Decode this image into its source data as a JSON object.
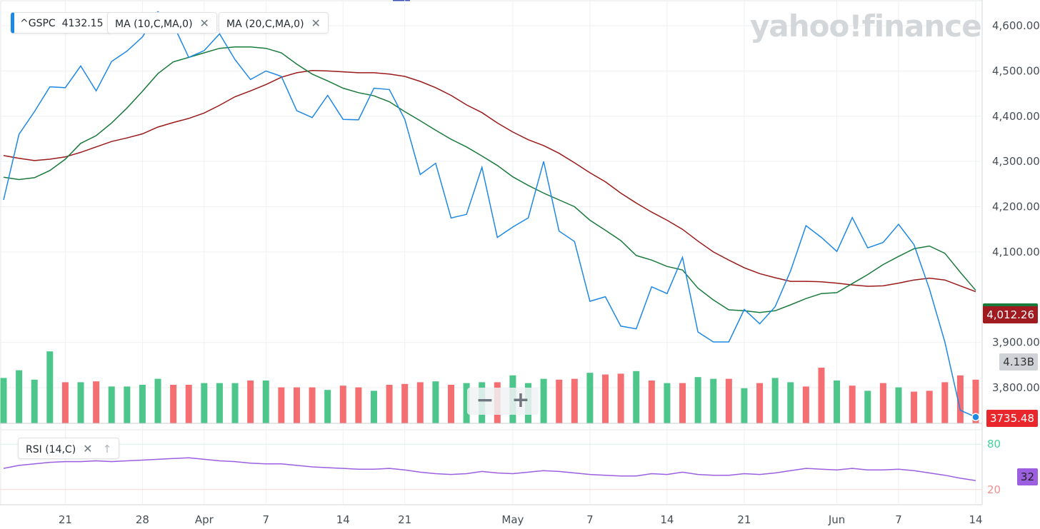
{
  "watermark": "yahoo!finance",
  "legend": {
    "ticker": "^GSPC",
    "ticker_value": "4132.15",
    "ma10_label": "MA (10,C,MA,0)",
    "ma20_label": "MA (20,C,MA,0)",
    "rsi_label": "RSI (14,C)",
    "close_symbol": "✕",
    "up_symbol": "↑"
  },
  "badges": {
    "ma20_value": "4,012.26",
    "volume_value": "4.13B",
    "price_value": "3735.48",
    "rsi_value": "32"
  },
  "zoom": {
    "minus": "−",
    "plus": "+"
  },
  "colors": {
    "price": "#1e88e5",
    "ma10": "#1a7a3c",
    "ma20": "#9a1a1a",
    "vol_up": "#4cc68a",
    "vol_down": "#f46e72",
    "rsi": "#9b5fe0",
    "rsi_upper": "#3fd49a",
    "rsi_lower": "#f29090"
  },
  "chart_data": {
    "type": "line",
    "y_ticks": [
      "4,600.00",
      "4,500.00",
      "4,400.00",
      "4,300.00",
      "4,200.00",
      "4,100.00",
      "3,900.00",
      "3,800.00"
    ],
    "y_tick_values": [
      4600,
      4500,
      4400,
      4300,
      4200,
      4100,
      3900,
      3800
    ],
    "ylim": [
      3730,
      4620
    ],
    "x_ticks": [
      {
        "label": "21",
        "index": 4
      },
      {
        "label": "28",
        "index": 9
      },
      {
        "label": "Apr",
        "index": 13
      },
      {
        "label": "7",
        "index": 17
      },
      {
        "label": "14",
        "index": 22
      },
      {
        "label": "21",
        "index": 26
      },
      {
        "label": "May",
        "index": 33
      },
      {
        "label": "7",
        "index": 38
      },
      {
        "label": "14",
        "index": 43
      },
      {
        "label": "21",
        "index": 48
      },
      {
        "label": "Jun",
        "index": 54
      },
      {
        "label": "7",
        "index": 58
      },
      {
        "label": "14",
        "index": 63
      }
    ],
    "series": [
      {
        "name": "^GSPC",
        "values": [
          4215,
          4360,
          4410,
          4465,
          4463,
          4511,
          4456,
          4521,
          4544,
          4575,
          4631,
          4603,
          4530,
          4545,
          4582,
          4525,
          4481,
          4500,
          4488,
          4412,
          4397,
          4446,
          4393,
          4392,
          4462,
          4459,
          4393,
          4271,
          4296,
          4175,
          4183,
          4287,
          4132,
          4155,
          4175,
          4300,
          4146,
          4123,
          3991,
          4001,
          3936,
          3930,
          4023,
          4008,
          4088,
          3923,
          3901,
          3901,
          3973,
          3941,
          3979,
          4058,
          4158,
          4132,
          4101,
          4176,
          4109,
          4121,
          4161,
          4116,
          4018,
          3901,
          3750,
          3735
        ]
      },
      {
        "name": "MA (10,C,MA,0)",
        "values": [
          4265,
          4260,
          4264,
          4280,
          4305,
          4340,
          4357,
          4385,
          4418,
          4455,
          4494,
          4520,
          4530,
          4540,
          4550,
          4553,
          4553,
          4550,
          4540,
          4515,
          4493,
          4478,
          4462,
          4452,
          4445,
          4432,
          4410,
          4390,
          4369,
          4349,
          4332,
          4312,
          4291,
          4266,
          4247,
          4230,
          4215,
          4200,
          4170,
          4148,
          4125,
          4092,
          4082,
          4068,
          4060,
          4020,
          3994,
          3972,
          3970,
          3966,
          3970,
          3983,
          3997,
          4008,
          4010,
          4030,
          4050,
          4072,
          4090,
          4107,
          4113,
          4097,
          4055,
          4015
        ]
      },
      {
        "name": "MA (20,C,MA,0)",
        "values": [
          4313,
          4307,
          4302,
          4305,
          4310,
          4320,
          4332,
          4344,
          4352,
          4361,
          4376,
          4386,
          4395,
          4407,
          4424,
          4443,
          4456,
          4470,
          4486,
          4496,
          4501,
          4500,
          4498,
          4496,
          4496,
          4493,
          4488,
          4477,
          4463,
          4446,
          4425,
          4408,
          4385,
          4365,
          4348,
          4335,
          4318,
          4297,
          4275,
          4255,
          4230,
          4208,
          4188,
          4170,
          4150,
          4124,
          4100,
          4082,
          4065,
          4052,
          4043,
          4035,
          4035,
          4034,
          4031,
          4027,
          4024,
          4025,
          4031,
          4038,
          4042,
          4038,
          4025,
          4012
        ]
      }
    ],
    "volume": {
      "direction": [
        "u",
        "u",
        "u",
        "u",
        "d",
        "u",
        "d",
        "u",
        "u",
        "u",
        "u",
        "d",
        "d",
        "u",
        "u",
        "u",
        "d",
        "u",
        "d",
        "d",
        "d",
        "u",
        "d",
        "d",
        "u",
        "d",
        "d",
        "d",
        "u",
        "d",
        "u",
        "u",
        "d",
        "u",
        "u",
        "u",
        "d",
        "d",
        "u",
        "d",
        "d",
        "u",
        "d",
        "u",
        "d",
        "u",
        "u",
        "d",
        "u",
        "d",
        "u",
        "u",
        "d",
        "d",
        "u",
        "d",
        "u",
        "d",
        "u",
        "d",
        "d",
        "d",
        "d",
        "d"
      ],
      "values": [
        26.5,
        31,
        25.5,
        42,
        24,
        24,
        24.5,
        21.5,
        21.5,
        22.5,
        26,
        22.5,
        22.5,
        23.5,
        23.5,
        23.5,
        25,
        25,
        21,
        21,
        21,
        19.5,
        22,
        21,
        19,
        22.5,
        23,
        24,
        24.5,
        22.5,
        23.5,
        24,
        24,
        28,
        23.5,
        26,
        25.5,
        26,
        29.5,
        28.5,
        29,
        30.5,
        25,
        23.5,
        23.5,
        27,
        26,
        26,
        20.5,
        23.5,
        26.5,
        24,
        21.5,
        32.5,
        25,
        22,
        19,
        23.5,
        21,
        18.5,
        19,
        24,
        28,
        25.5
      ]
    },
    "rsi": {
      "name": "RSI (14,C)",
      "levels": [
        80,
        20
      ],
      "values": [
        48,
        52,
        54,
        56,
        57,
        57,
        58,
        57,
        58,
        59,
        60,
        61,
        62,
        60,
        58,
        57,
        55,
        54,
        54,
        52,
        50,
        49,
        48,
        47,
        47,
        48,
        46,
        43,
        41,
        40,
        41,
        44,
        42,
        41,
        43,
        45,
        44,
        42,
        40,
        39,
        38,
        38,
        41,
        40,
        43,
        40,
        39,
        39,
        41,
        40,
        42,
        45,
        48,
        47,
        46,
        48,
        46,
        46,
        47,
        45,
        42,
        39,
        35,
        32
      ]
    }
  }
}
